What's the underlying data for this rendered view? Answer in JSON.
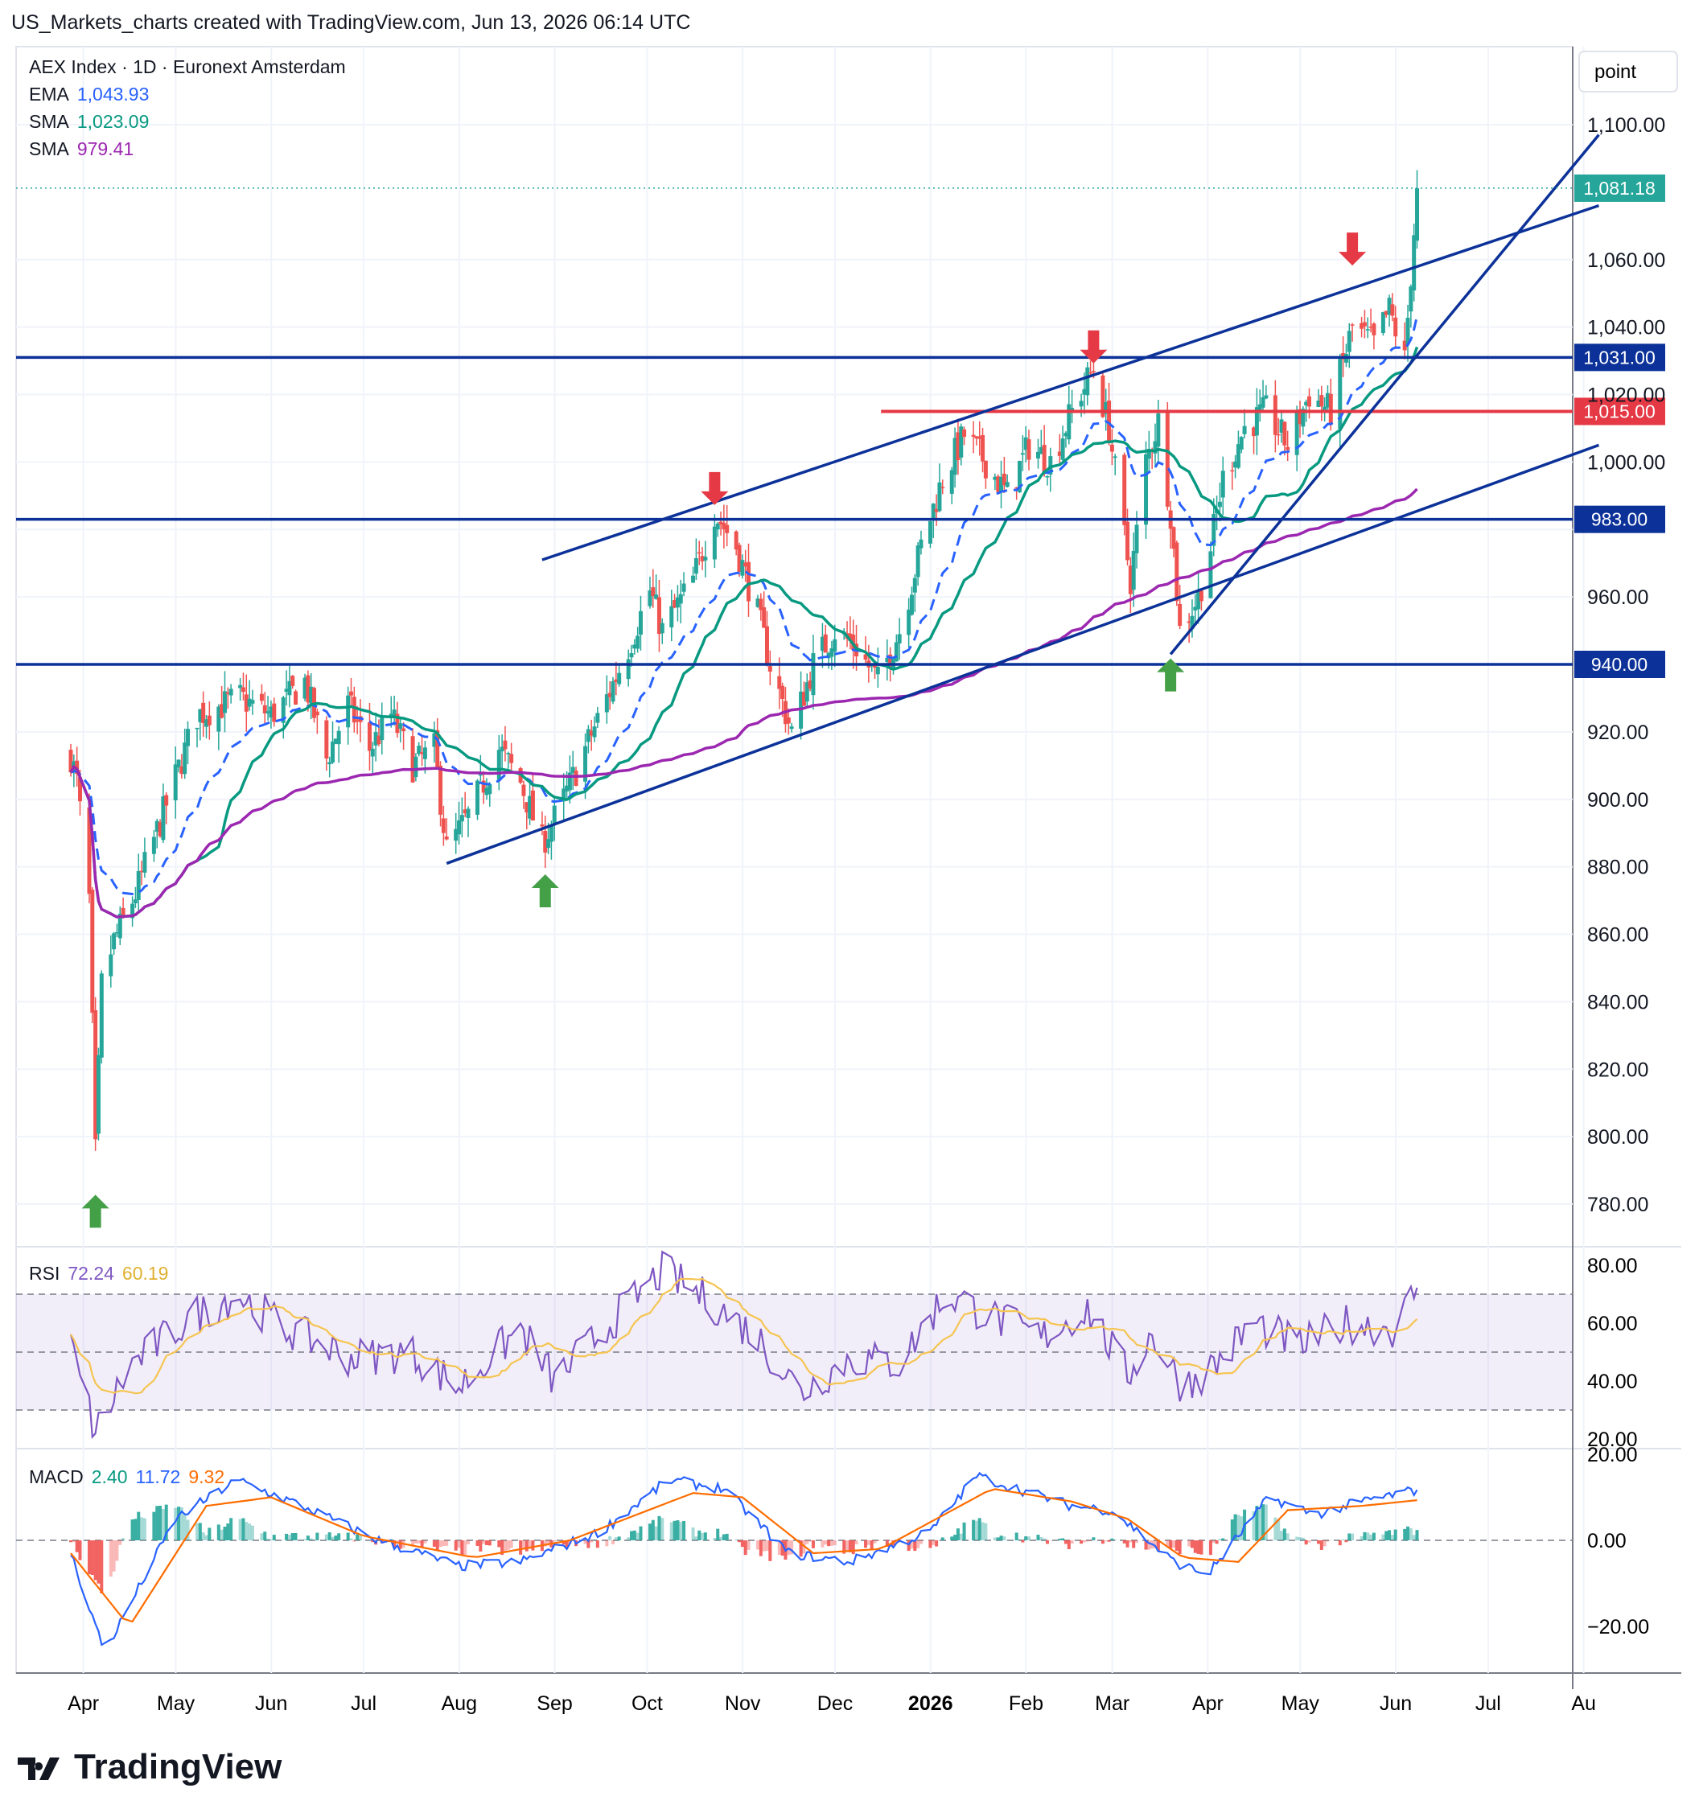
{
  "header": "US_Markets_charts created with TradingView.com, Jun 13, 2026 06:14 UTC",
  "brand": "TradingView",
  "legend": {
    "symbol": "AEX Index · 1D · Euronext Amsterdam",
    "ema_label": "EMA",
    "ema_value": "1,043.93",
    "sma1_label": "SMA",
    "sma1_value": "1,023.09",
    "sma2_label": "SMA",
    "sma2_value": "979.41",
    "rsi_label": "RSI",
    "rsi_value": "72.24",
    "rsi_ma_value": "60.19",
    "macd_label": "MACD",
    "macd_hist": "2.40",
    "macd_line": "11.72",
    "macd_signal": "9.32"
  },
  "scale_button": "point",
  "colors": {
    "up": "#26a69a",
    "down": "#ef5350",
    "ema": "#2962ff",
    "sma50": "#089981",
    "sma200": "#9c27b0",
    "level": "#0c3299",
    "red_level": "#e53945",
    "rsi": "#7e57c2",
    "rsi_ma": "#f5c451",
    "macd_signal": "#ff6d00"
  },
  "chart_data": [
    {
      "type": "candlestick",
      "title": "AEX Index · 1D · Euronext Amsterdam",
      "x_range": [
        "2025-04",
        "2026-08"
      ],
      "month_labels": [
        "Apr",
        "May",
        "Jun",
        "Jul",
        "Aug",
        "Sep",
        "Oct",
        "Nov",
        "Dec",
        "2026",
        "Feb",
        "Mar",
        "Apr",
        "May",
        "Jun",
        "Jul",
        "Au"
      ],
      "ylim": [
        770,
        1110
      ],
      "y_ticks": [
        "1,100.00",
        "1,060.00",
        "1,040.00",
        "1,020.00",
        "1,000.00",
        "960.00",
        "920.00",
        "900.00",
        "880.00",
        "860.00",
        "840.00",
        "820.00",
        "800.00",
        "780.00"
      ],
      "last_price": "1,081.18",
      "price_anchors": [
        [
          "2025-04-01",
          913
        ],
        [
          "2025-04-03",
          905
        ],
        [
          "2025-04-07",
          870
        ],
        [
          "2025-04-09",
          795
        ],
        [
          "2025-04-11",
          845
        ],
        [
          "2025-04-15",
          858
        ],
        [
          "2025-04-22",
          872
        ],
        [
          "2025-04-28",
          888
        ],
        [
          "2025-05-12",
          925
        ],
        [
          "2025-05-26",
          930
        ],
        [
          "2025-06-05",
          925
        ],
        [
          "2025-06-16",
          935
        ],
        [
          "2025-06-23",
          912
        ],
        [
          "2025-06-30",
          928
        ],
        [
          "2025-07-07",
          915
        ],
        [
          "2025-07-14",
          925
        ],
        [
          "2025-07-21",
          910
        ],
        [
          "2025-07-28",
          915
        ],
        [
          "2025-08-01",
          885
        ],
        [
          "2025-08-08",
          895
        ],
        [
          "2025-08-18",
          915
        ],
        [
          "2025-08-25",
          905
        ],
        [
          "2025-09-01",
          887
        ],
        [
          "2025-09-08",
          900
        ],
        [
          "2025-09-15",
          915
        ],
        [
          "2025-09-22",
          930
        ],
        [
          "2025-09-29",
          945
        ],
        [
          "2025-10-06",
          962
        ],
        [
          "2025-10-10",
          950
        ],
        [
          "2025-10-20",
          965
        ],
        [
          "2025-10-27",
          985
        ],
        [
          "2025-11-03",
          975
        ],
        [
          "2025-11-10",
          955
        ],
        [
          "2025-11-14",
          940
        ],
        [
          "2025-11-21",
          920
        ],
        [
          "2025-11-28",
          940
        ],
        [
          "2025-12-05",
          950
        ],
        [
          "2025-12-12",
          945
        ],
        [
          "2025-12-19",
          935
        ],
        [
          "2025-12-26",
          950
        ],
        [
          "2026-01-02",
          975
        ],
        [
          "2026-01-09",
          995
        ],
        [
          "2026-01-16",
          1008
        ],
        [
          "2026-01-23",
          1000
        ],
        [
          "2026-01-30",
          990
        ],
        [
          "2026-02-06",
          1005
        ],
        [
          "2026-02-13",
          1000
        ],
        [
          "2026-02-20",
          1015
        ],
        [
          "2026-02-27",
          1028
        ],
        [
          "2026-03-04",
          1010
        ],
        [
          "2026-03-11",
          965
        ],
        [
          "2026-03-16",
          1000
        ],
        [
          "2026-03-20",
          1012
        ],
        [
          "2026-03-24",
          985
        ],
        [
          "2026-03-27",
          950
        ],
        [
          "2026-04-02",
          960
        ],
        [
          "2026-04-06",
          975
        ],
        [
          "2026-04-10",
          995
        ],
        [
          "2026-04-17",
          1010
        ],
        [
          "2026-04-24",
          1015
        ],
        [
          "2026-05-01",
          1005
        ],
        [
          "2026-05-08",
          1020
        ],
        [
          "2026-05-15",
          1015
        ],
        [
          "2026-05-22",
          1040
        ],
        [
          "2026-05-29",
          1035
        ],
        [
          "2026-06-03",
          1045
        ],
        [
          "2026-06-08",
          1030
        ],
        [
          "2026-06-12",
          1081.18
        ]
      ],
      "levels": [
        {
          "value": 1031,
          "label": "1,031.00"
        },
        {
          "value": 1015,
          "label": "1,015.00"
        },
        {
          "value": 983,
          "label": "983.00"
        },
        {
          "value": 940,
          "label": "940.00"
        }
      ],
      "trendlines": [
        [
          [
            "2025-09-01",
            971
          ],
          [
            "2026-08-10",
            1076
          ]
        ],
        [
          [
            "2025-08-01",
            881
          ],
          [
            "2026-08-10",
            1005
          ]
        ],
        [
          [
            "2026-03-24",
            943
          ],
          [
            "2026-08-10",
            1097
          ]
        ]
      ],
      "markers": [
        {
          "dir": "up",
          "date": "2025-04-09",
          "value": 778
        },
        {
          "dir": "up",
          "date": "2025-09-02",
          "value": 873
        },
        {
          "dir": "down",
          "date": "2025-10-27",
          "value": 992
        },
        {
          "dir": "down",
          "date": "2026-02-27",
          "value": 1034
        },
        {
          "dir": "up",
          "date": "2026-03-24",
          "value": 937
        },
        {
          "dir": "down",
          "date": "2026-05-22",
          "value": 1063
        }
      ]
    },
    {
      "type": "line",
      "title": "RSI",
      "ylim": [
        15,
        85
      ],
      "y_ticks": [
        "80.00",
        "60.00",
        "40.00",
        "20.00"
      ],
      "band": [
        30,
        70
      ],
      "rsi_anchors": [
        [
          "2025-04-01",
          52
        ],
        [
          "2025-04-09",
          22
        ],
        [
          "2025-04-20",
          45
        ],
        [
          "2025-05-10",
          62
        ],
        [
          "2025-05-25",
          70
        ],
        [
          "2025-06-10",
          58
        ],
        [
          "2025-07-01",
          48
        ],
        [
          "2025-07-20",
          50
        ],
        [
          "2025-08-05",
          38
        ],
        [
          "2025-08-25",
          58
        ],
        [
          "2025-09-05",
          40
        ],
        [
          "2025-09-25",
          62
        ],
        [
          "2025-10-10",
          78
        ],
        [
          "2025-10-25",
          68
        ],
        [
          "2025-11-10",
          55
        ],
        [
          "2025-11-24",
          36
        ],
        [
          "2025-12-10",
          48
        ],
        [
          "2025-12-26",
          46
        ],
        [
          "2026-01-10",
          70
        ],
        [
          "2026-01-25",
          62
        ],
        [
          "2026-02-10",
          55
        ],
        [
          "2026-02-25",
          65
        ],
        [
          "2026-03-10",
          42
        ],
        [
          "2026-03-18",
          56
        ],
        [
          "2026-03-28",
          38
        ],
        [
          "2026-04-08",
          46
        ],
        [
          "2026-04-20",
          60
        ],
        [
          "2026-05-05",
          52
        ],
        [
          "2026-05-20",
          60
        ],
        [
          "2026-06-05",
          58
        ],
        [
          "2026-06-12",
          72.24
        ]
      ]
    },
    {
      "type": "bar+line",
      "title": "MACD",
      "ylim": [
        -32,
        22
      ],
      "y_ticks": [
        "20.00",
        "0.00",
        "−20.00"
      ],
      "macd_anchors": [
        [
          "2025-04-01",
          -3
        ],
        [
          "2025-04-12",
          -26
        ],
        [
          "2025-05-05",
          5
        ],
        [
          "2025-05-25",
          14
        ],
        [
          "2025-06-15",
          8
        ],
        [
          "2025-07-10",
          0
        ],
        [
          "2025-08-05",
          -6
        ],
        [
          "2025-08-25",
          -5
        ],
        [
          "2025-09-20",
          2
        ],
        [
          "2025-10-12",
          14
        ],
        [
          "2025-10-30",
          12
        ],
        [
          "2025-11-20",
          -3
        ],
        [
          "2025-12-10",
          -5
        ],
        [
          "2026-01-05",
          2
        ],
        [
          "2026-01-20",
          15
        ],
        [
          "2026-02-20",
          8
        ],
        [
          "2026-03-05",
          7
        ],
        [
          "2026-03-25",
          -5
        ],
        [
          "2026-04-05",
          -8
        ],
        [
          "2026-04-25",
          10
        ],
        [
          "2026-05-10",
          6
        ],
        [
          "2026-05-25",
          9
        ],
        [
          "2026-06-12",
          11.72
        ]
      ],
      "signal_anchors": [
        [
          "2025-04-01",
          -3
        ],
        [
          "2025-04-20",
          -20
        ],
        [
          "2025-05-15",
          8
        ],
        [
          "2025-06-05",
          10
        ],
        [
          "2025-07-05",
          1
        ],
        [
          "2025-08-10",
          -4
        ],
        [
          "2025-09-10",
          0
        ],
        [
          "2025-10-20",
          11
        ],
        [
          "2025-11-05",
          10
        ],
        [
          "2025-11-28",
          -3
        ],
        [
          "2025-12-20",
          -2
        ],
        [
          "2026-01-25",
          12
        ],
        [
          "2026-02-20",
          9
        ],
        [
          "2026-03-10",
          5
        ],
        [
          "2026-03-28",
          -4
        ],
        [
          "2026-04-15",
          -5
        ],
        [
          "2026-05-01",
          7
        ],
        [
          "2026-05-25",
          8
        ],
        [
          "2026-06-12",
          9.32
        ]
      ]
    }
  ]
}
